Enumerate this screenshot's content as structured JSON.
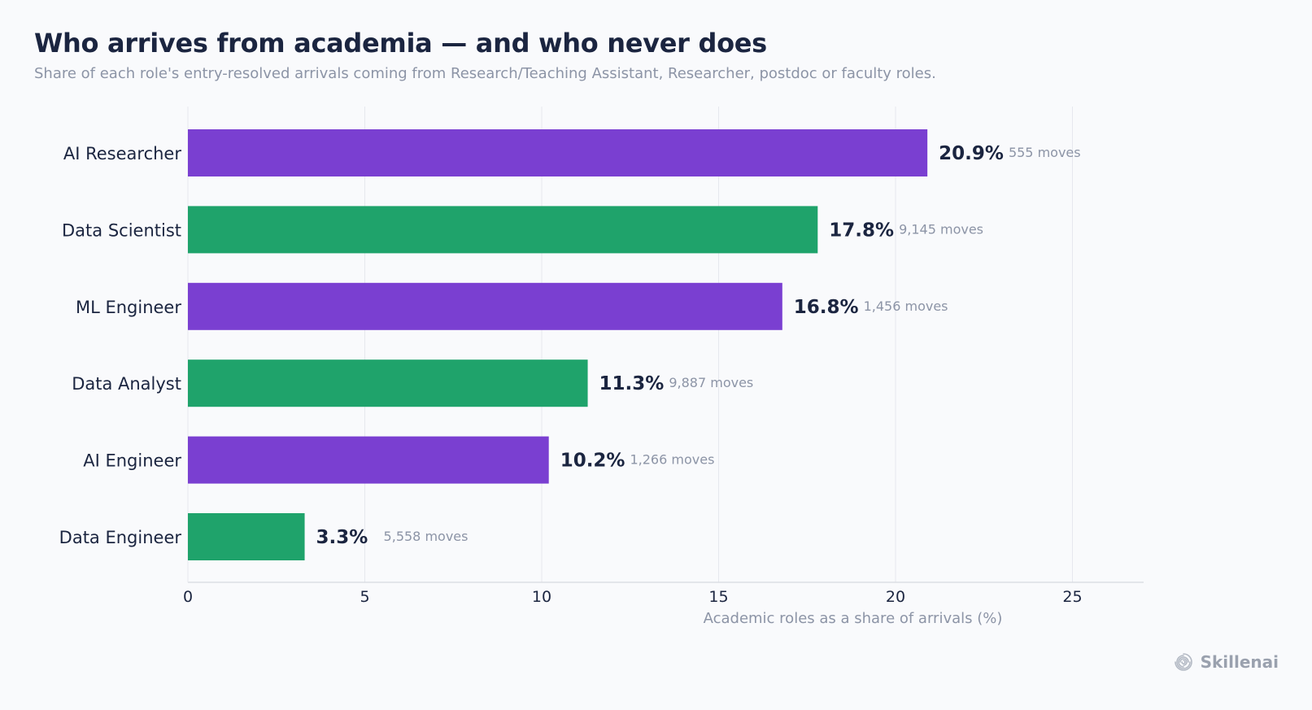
{
  "header": {
    "title": "Who arrives from academia — and who never does",
    "subtitle": "Share of each role's entry-resolved arrivals coming from Research/Teaching Assistant, Researcher, postdoc or faculty roles."
  },
  "brand": {
    "name": "Skillenai",
    "icon": "spiral-logo-icon"
  },
  "colors": {
    "purple": "#7a3fd1",
    "green": "#1fa36b",
    "grid": "#e6e8ee",
    "text_dark": "#1b2540",
    "text_muted": "#8c94a6"
  },
  "chart_data": {
    "type": "bar",
    "orientation": "horizontal",
    "title": "Who arrives from academia — and who never does",
    "subtitle": "Share of each role's entry-resolved arrivals coming from Research/Teaching Assistant, Researcher, postdoc or faculty roles.",
    "xlabel": "Academic roles as a share of arrivals (%)",
    "ylabel": "",
    "xlim": [
      0,
      27
    ],
    "xticks": [
      0,
      5,
      10,
      15,
      20,
      25
    ],
    "grid": true,
    "categories": [
      "AI Researcher",
      "Data Scientist",
      "ML Engineer",
      "Data Analyst",
      "AI Engineer",
      "Data Engineer"
    ],
    "values": [
      20.9,
      17.8,
      16.8,
      11.3,
      10.2,
      3.3
    ],
    "value_labels": [
      "20.9%",
      "17.8%",
      "16.8%",
      "11.3%",
      "10.2%",
      "3.3%"
    ],
    "moves_labels": [
      "555 moves",
      "9,145 moves",
      "1,456 moves",
      "9,887 moves",
      "1,266 moves",
      "5,558 moves"
    ],
    "bar_colors": [
      "#7a3fd1",
      "#1fa36b",
      "#7a3fd1",
      "#1fa36b",
      "#7a3fd1",
      "#1fa36b"
    ]
  }
}
